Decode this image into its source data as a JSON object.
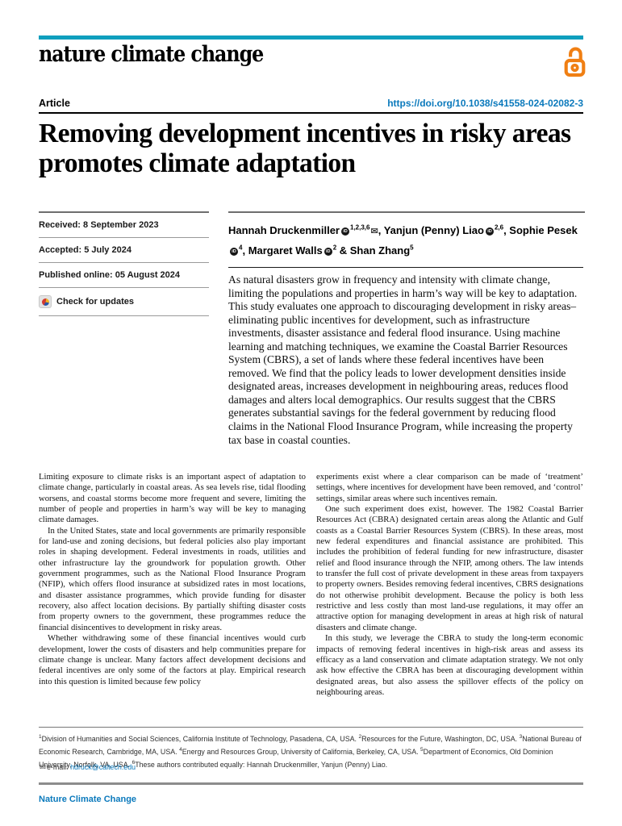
{
  "journal": {
    "logo": "nature climate change",
    "footer_name": "Nature Climate Change"
  },
  "header": {
    "article_type": "Article",
    "doi": "https://doi.org/10.1038/s41558-024-02082-3"
  },
  "title": "Removing development incentives in risky areas promotes climate adaptation",
  "sidebar": {
    "received": "Received: 8 September 2023",
    "accepted": "Accepted: 5 July 2024",
    "published": "Published online: 05 August 2024",
    "check_updates": "Check for updates"
  },
  "authors": [
    {
      "name": "Hannah Druckenmiller",
      "orcid": true,
      "sup": "1,2,3,6",
      "email_icon": true,
      "sep": ", "
    },
    {
      "name": "Yanjun (Penny) Liao",
      "orcid": true,
      "sup": "2,6",
      "email_icon": false,
      "sep": ", "
    },
    {
      "name": "Sophie Pesek",
      "orcid": true,
      "sup": "4",
      "email_icon": false,
      "sep": ", "
    },
    {
      "name": "Margaret Walls",
      "orcid": true,
      "sup": "2",
      "email_icon": false,
      "sep": " & "
    },
    {
      "name": "Shan Zhang",
      "orcid": false,
      "sup": "5",
      "email_icon": false,
      "sep": ""
    }
  ],
  "abstract": "As natural disasters grow in frequency and intensity with climate change, limiting the populations and properties in harm’s way will be key to adaptation. This study evaluates one approach to discouraging development in risky areas–eliminating public incentives for development, such as infrastructure investments, disaster assistance and federal flood insurance. Using machine learning and matching techniques, we examine the Coastal Barrier Resources System (CBRS), a set of lands where these federal incentives have been removed. We find that the policy leads to lower development densities inside designated areas, increases development in neighbouring areas, reduces flood damages and alters local demographics. Our results suggest that the CBRS generates substantial savings for the federal government by reducing flood claims in the National Flood Insurance Program, while increasing the property tax base in coastal counties.",
  "body": {
    "left_column": [
      "Limiting exposure to climate risks is an important aspect of adaptation to climate change, particularly in coastal areas. As sea levels rise, tidal flooding worsens, and coastal storms become more frequent and severe, limiting the number of people and properties in harm’s way will be key to managing climate damages.",
      "In the United States, state and local governments are primarily responsible for land-use and zoning decisions, but federal policies also play important roles in shaping development. Federal investments in roads, utilities and other infrastructure lay the groundwork for population growth. Other government programmes, such as the National Flood Insurance Program (NFIP), which offers flood insurance at subsidized rates in most locations, and disaster assistance programmes, which provide funding for disaster recovery, also affect location decisions. By partially shifting disaster costs from property owners to the government, these programmes reduce the financial disincentives to development in risky areas.",
      "Whether withdrawing some of these financial incentives would curb development, lower the costs of disasters and help communities prepare for climate change is unclear. Many factors affect development decisions and federal incentives are only some of the factors at play. Empirical research into this question is limited because few policy"
    ],
    "right_column": [
      "experiments exist where a clear comparison can be made of ‘treatment’ settings, where incentives for development have been removed, and ‘control’ settings, similar areas where such incentives remain.",
      "One such experiment does exist, however. The 1982 Coastal Barrier Resources Act (CBRA) designated certain areas along the Atlantic and Gulf coasts as a Coastal Barrier Resources System (CBRS). In these areas, most new federal expenditures and financial assistance are prohibited. This includes the prohibition of federal funding for new infrastructure, disaster relief and flood insurance through the NFIP, among others. The law intends to transfer the full cost of private development in these areas from taxpayers to property owners. Besides removing federal incentives, CBRS designations do not otherwise prohibit development. Because the policy is both less restrictive and less costly than most land-use regulations, it may offer an attractive option for managing development in areas at high risk of natural disasters and climate change.",
      "In this study, we leverage the CBRA to study the long-term economic impacts of removing federal incentives in high-risk areas and assess its efficacy as a land conservation and climate adaptation strategy. We not only ask how effective the CBRA has been at discouraging development within designated areas, but also assess the spillover effects of the policy on neighbouring areas."
    ]
  },
  "footnotes": [
    {
      "sup": "1",
      "text": "Division of Humanities and Social Sciences, California Institute of Technology, Pasadena, CA, USA."
    },
    {
      "sup": "2",
      "text": "Resources for the Future, Washington, DC, USA."
    },
    {
      "sup": "3",
      "text": "National Bureau of Economic Research, Cambridge, MA, USA."
    },
    {
      "sup": "4",
      "text": "Energy and Resources Group, University of California, Berkeley, CA, USA."
    },
    {
      "sup": "5",
      "text": "Department of Economics, Old Dominion University, Norfolk, VA, USA."
    },
    {
      "sup": "6",
      "text": "These authors contributed equally: Hannah Druckenmiller, Yanjun (Penny) Liao."
    }
  ],
  "email": {
    "label": "e-mail: ",
    "address": "hdruck@caltech.edu"
  },
  "icons": {
    "orcid": "iD",
    "envelope": "✉",
    "open_access": "open-padlock",
    "check_updates": "crossmark-circle"
  },
  "colors": {
    "masthead_teal": "#0f9fbe",
    "open_access_orange": "#f07f13",
    "link_blue": "#0a79bc"
  }
}
